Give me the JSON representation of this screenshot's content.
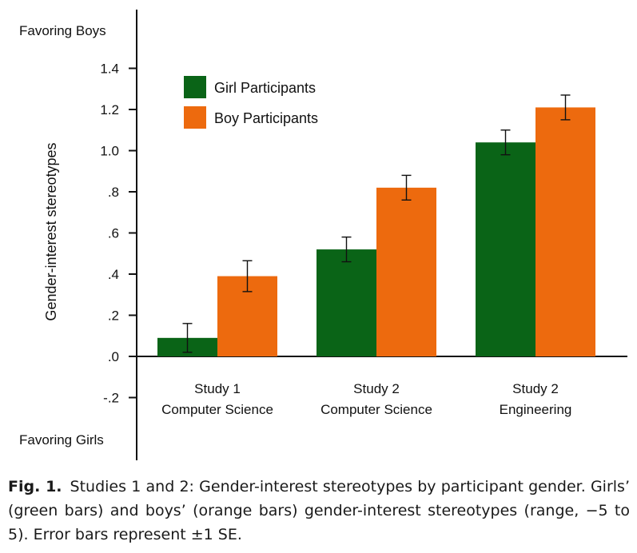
{
  "chart_data": {
    "type": "bar",
    "ylabel": "Gender-interest stereotypes",
    "top_annotation": "Favoring Boys",
    "bottom_annotation": "Favoring Girls",
    "ylim": [
      -0.3,
      1.55
    ],
    "yticks": [
      {
        "value": 1.4,
        "label": "1.4"
      },
      {
        "value": 1.2,
        "label": "1.2"
      },
      {
        "value": 1.0,
        "label": "1.0"
      },
      {
        "value": 0.8,
        "label": ".8"
      },
      {
        "value": 0.6,
        "label": ".6"
      },
      {
        "value": 0.4,
        "label": ".4"
      },
      {
        "value": 0.2,
        "label": ".2"
      },
      {
        "value": 0.0,
        "label": ".0"
      },
      {
        "value": -0.2,
        "label": "-.2"
      }
    ],
    "categories": [
      {
        "line1": "Study 1",
        "line2": "Computer Science"
      },
      {
        "line1": "Study 2",
        "line2": "Computer Science"
      },
      {
        "line1": "Study 2",
        "line2": "Engineering"
      }
    ],
    "series": [
      {
        "name": "Girl Participants",
        "color": "#0a6417",
        "values": [
          0.09,
          0.52,
          1.04
        ],
        "se": [
          0.07,
          0.06,
          0.06
        ]
      },
      {
        "name": "Boy Participants",
        "color": "#ed6a0e",
        "values": [
          0.39,
          0.82,
          1.21
        ],
        "se": [
          0.075,
          0.06,
          0.06
        ]
      }
    ],
    "legend_position": "top-left",
    "grid": false
  },
  "caption": {
    "label": "Fig. 1.",
    "text": "Studies 1 and 2: Gender-interest stereotypes by participant gender. Girls’ (green bars) and boys’ (orange bars) gender-interest stereotypes (range, −5 to 5). Error bars represent ±1 SE."
  }
}
